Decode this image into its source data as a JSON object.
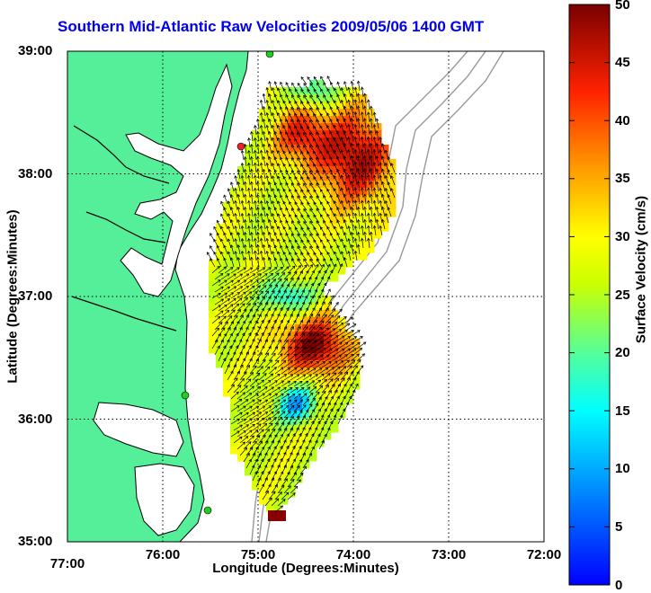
{
  "title": "Southern Mid-Atlantic Raw Velocities 2009/05/06 1400 GMT",
  "xlabel": "Longitude (Degrees:Minutes)",
  "ylabel": "Latitude (Degrees:Minutes)",
  "colorbar": {
    "label": "Surface Velocity (cm/s)",
    "ticks": [
      "0",
      "5",
      "10",
      "15",
      "20",
      "25",
      "30",
      "35",
      "40",
      "45",
      "50"
    ],
    "range": [
      0,
      50
    ],
    "colormap": "jet"
  },
  "x_ticks": [
    "77:00",
    "76:00",
    "75:00",
    "74:00",
    "73:00",
    "72:00"
  ],
  "y_ticks": [
    "39:00",
    "38:00",
    "37:00",
    "36:00",
    "35:00"
  ],
  "map": {
    "lon_range": [
      -77,
      -72
    ],
    "lat_range": [
      35,
      39
    ],
    "grid": true,
    "land_color": "#55ee99",
    "ocean_color": "#ffffff",
    "station_marker_colors": [
      "#22cc22",
      "#ee2222"
    ]
  },
  "colors": {
    "title": "#0000ee",
    "land": "#55ee99",
    "coastline": "#000000",
    "bathymetry_contour": "#999999"
  }
}
